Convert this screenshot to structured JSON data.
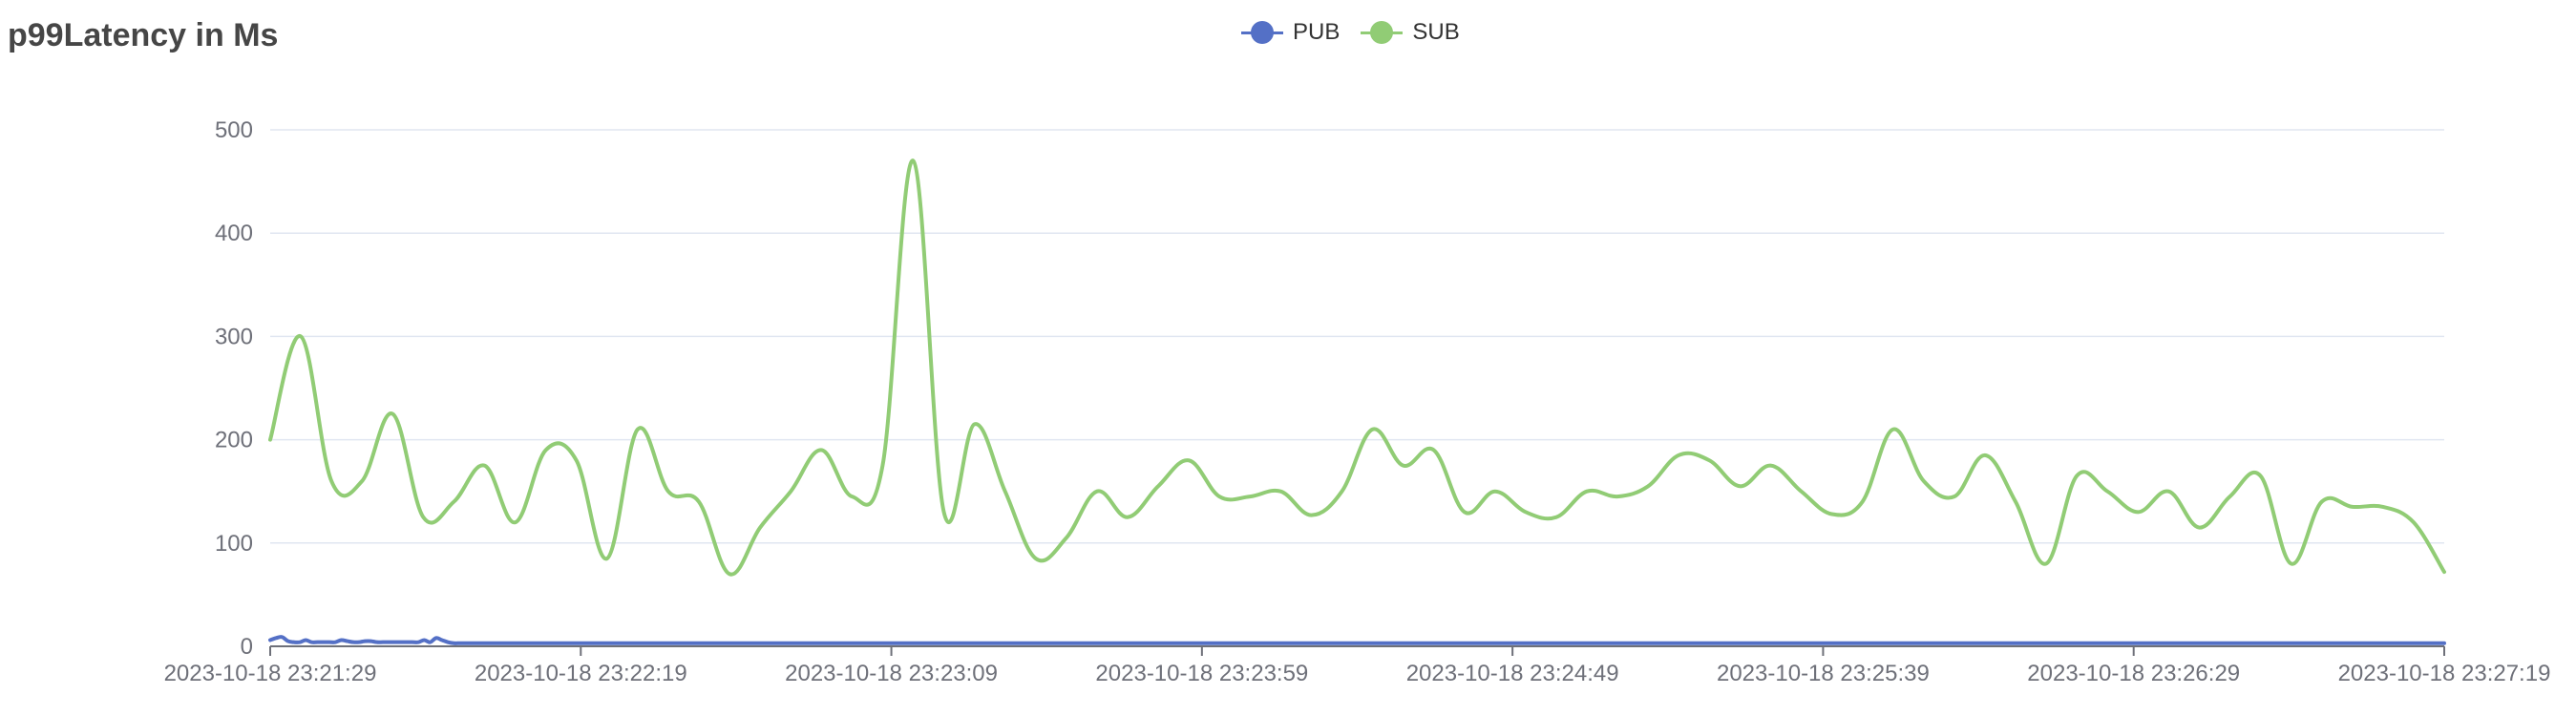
{
  "title": "p99Latency in Ms",
  "legend": [
    {
      "name": "PUB",
      "color": "#5470c6",
      "icon": "circle-line-icon"
    },
    {
      "name": "SUB",
      "color": "#91cc75",
      "icon": "circle-line-icon"
    }
  ],
  "chart_data": {
    "type": "line",
    "smooth": true,
    "title": "p99Latency in Ms",
    "legend_position": "top-center",
    "grid": true,
    "ylim": [
      0,
      500
    ],
    "yticks": [
      0,
      100,
      200,
      300,
      400,
      500
    ],
    "x_start": "2023-10-18 23:21:29",
    "x_end": "2023-10-18 23:27:19",
    "xticks": [
      "2023-10-18 23:21:29",
      "2023-10-18 23:22:19",
      "2023-10-18 23:23:09",
      "2023-10-18 23:23:59",
      "2023-10-18 23:24:49",
      "2023-10-18 23:25:39",
      "2023-10-18 23:26:29",
      "2023-10-18 23:27:19"
    ],
    "series": [
      {
        "name": "PUB",
        "color": "#5470c6",
        "values": [
          6,
          8,
          9,
          5,
          4,
          4,
          6,
          4,
          4,
          4,
          4,
          4,
          6,
          5,
          4,
          4,
          5,
          5,
          4,
          4,
          4,
          4,
          4,
          4,
          4,
          4,
          6,
          4,
          8,
          6,
          4,
          3,
          3,
          3,
          3,
          3,
          3,
          3,
          3,
          3,
          3,
          3,
          3,
          3,
          3,
          3,
          3,
          3,
          3,
          3,
          3,
          3,
          3,
          3,
          3,
          3,
          3,
          3,
          3,
          3,
          3,
          3,
          3,
          3,
          3,
          3,
          3,
          3,
          3,
          3,
          3,
          3,
          3,
          3,
          3,
          3,
          3,
          3,
          3,
          3,
          3,
          3,
          3,
          3,
          3,
          3,
          3,
          3,
          3,
          3,
          3,
          3,
          3,
          3,
          3,
          3,
          3,
          3,
          3,
          3,
          3,
          3,
          3,
          3,
          3,
          3,
          3,
          3,
          3,
          3,
          3,
          3,
          3,
          3,
          3,
          3,
          3,
          3,
          3,
          3,
          3,
          3,
          3,
          3,
          3,
          3,
          3,
          3,
          3,
          3,
          3,
          3,
          3,
          3,
          3,
          3,
          3,
          3,
          3,
          3,
          3,
          3,
          3,
          3,
          3,
          3,
          3,
          3,
          3,
          3,
          3,
          3,
          3,
          3,
          3,
          3,
          3,
          3,
          3,
          3,
          3,
          3,
          3,
          3,
          3,
          3,
          3,
          3,
          3,
          3,
          3,
          3,
          3,
          3,
          3,
          3,
          3,
          3,
          3,
          3,
          3,
          3,
          3,
          3,
          3,
          3,
          3,
          3,
          3,
          3,
          3,
          3,
          3,
          3,
          3,
          3,
          3,
          3,
          3,
          3,
          3,
          3,
          3,
          3,
          3,
          3,
          3,
          3,
          3,
          3,
          3,
          3,
          3,
          3,
          3,
          3,
          3,
          3,
          3,
          3,
          3,
          3,
          3,
          3,
          3,
          3,
          3,
          3,
          3,
          3,
          3,
          3,
          3,
          3,
          3,
          3,
          3,
          3,
          3,
          3,
          3,
          3,
          3,
          3,
          3,
          3,
          3,
          3,
          3,
          3,
          3,
          3,
          3,
          3,
          3,
          3,
          3,
          3,
          3,
          3,
          3,
          3,
          3,
          3,
          3,
          3,
          3,
          3,
          3,
          3,
          3,
          3,
          3,
          3,
          3,
          3,
          3,
          3,
          3,
          3,
          3,
          3,
          3,
          3,
          3,
          3,
          3,
          3,
          3,
          3,
          3,
          3,
          3,
          3,
          3,
          3,
          3,
          3,
          3,
          3,
          3,
          3,
          3,
          3,
          3,
          3,
          3,
          3,
          3,
          3,
          3,
          3,
          3,
          3,
          3,
          3,
          3,
          3,
          3,
          3,
          3,
          3,
          3,
          3,
          3,
          3,
          3,
          3,
          3,
          3,
          3,
          3,
          3,
          3,
          3,
          3,
          3,
          3,
          3,
          3,
          3,
          3,
          3,
          3,
          3,
          3,
          3,
          3,
          3,
          3,
          3,
          3,
          3,
          3,
          3,
          3,
          3,
          3,
          3,
          3,
          3,
          3,
          3,
          3,
          3,
          3,
          3,
          3
        ]
      },
      {
        "name": "SUB",
        "color": "#91cc75",
        "values": [
          200,
          300,
          160,
          160,
          225,
          125,
          140,
          175,
          120,
          190,
          180,
          85,
          210,
          150,
          140,
          70,
          115,
          150,
          190,
          145,
          175,
          470,
          130,
          215,
          150,
          85,
          105,
          150,
          125,
          155,
          180,
          145,
          145,
          150,
          127,
          150,
          210,
          175,
          190,
          130,
          150,
          130,
          125,
          150,
          145,
          155,
          185,
          180,
          155,
          175,
          150,
          128,
          140,
          210,
          160,
          145,
          185,
          140,
          80,
          165,
          150,
          130,
          150,
          115,
          145,
          165,
          80,
          140,
          135,
          135,
          120,
          72
        ]
      }
    ]
  }
}
